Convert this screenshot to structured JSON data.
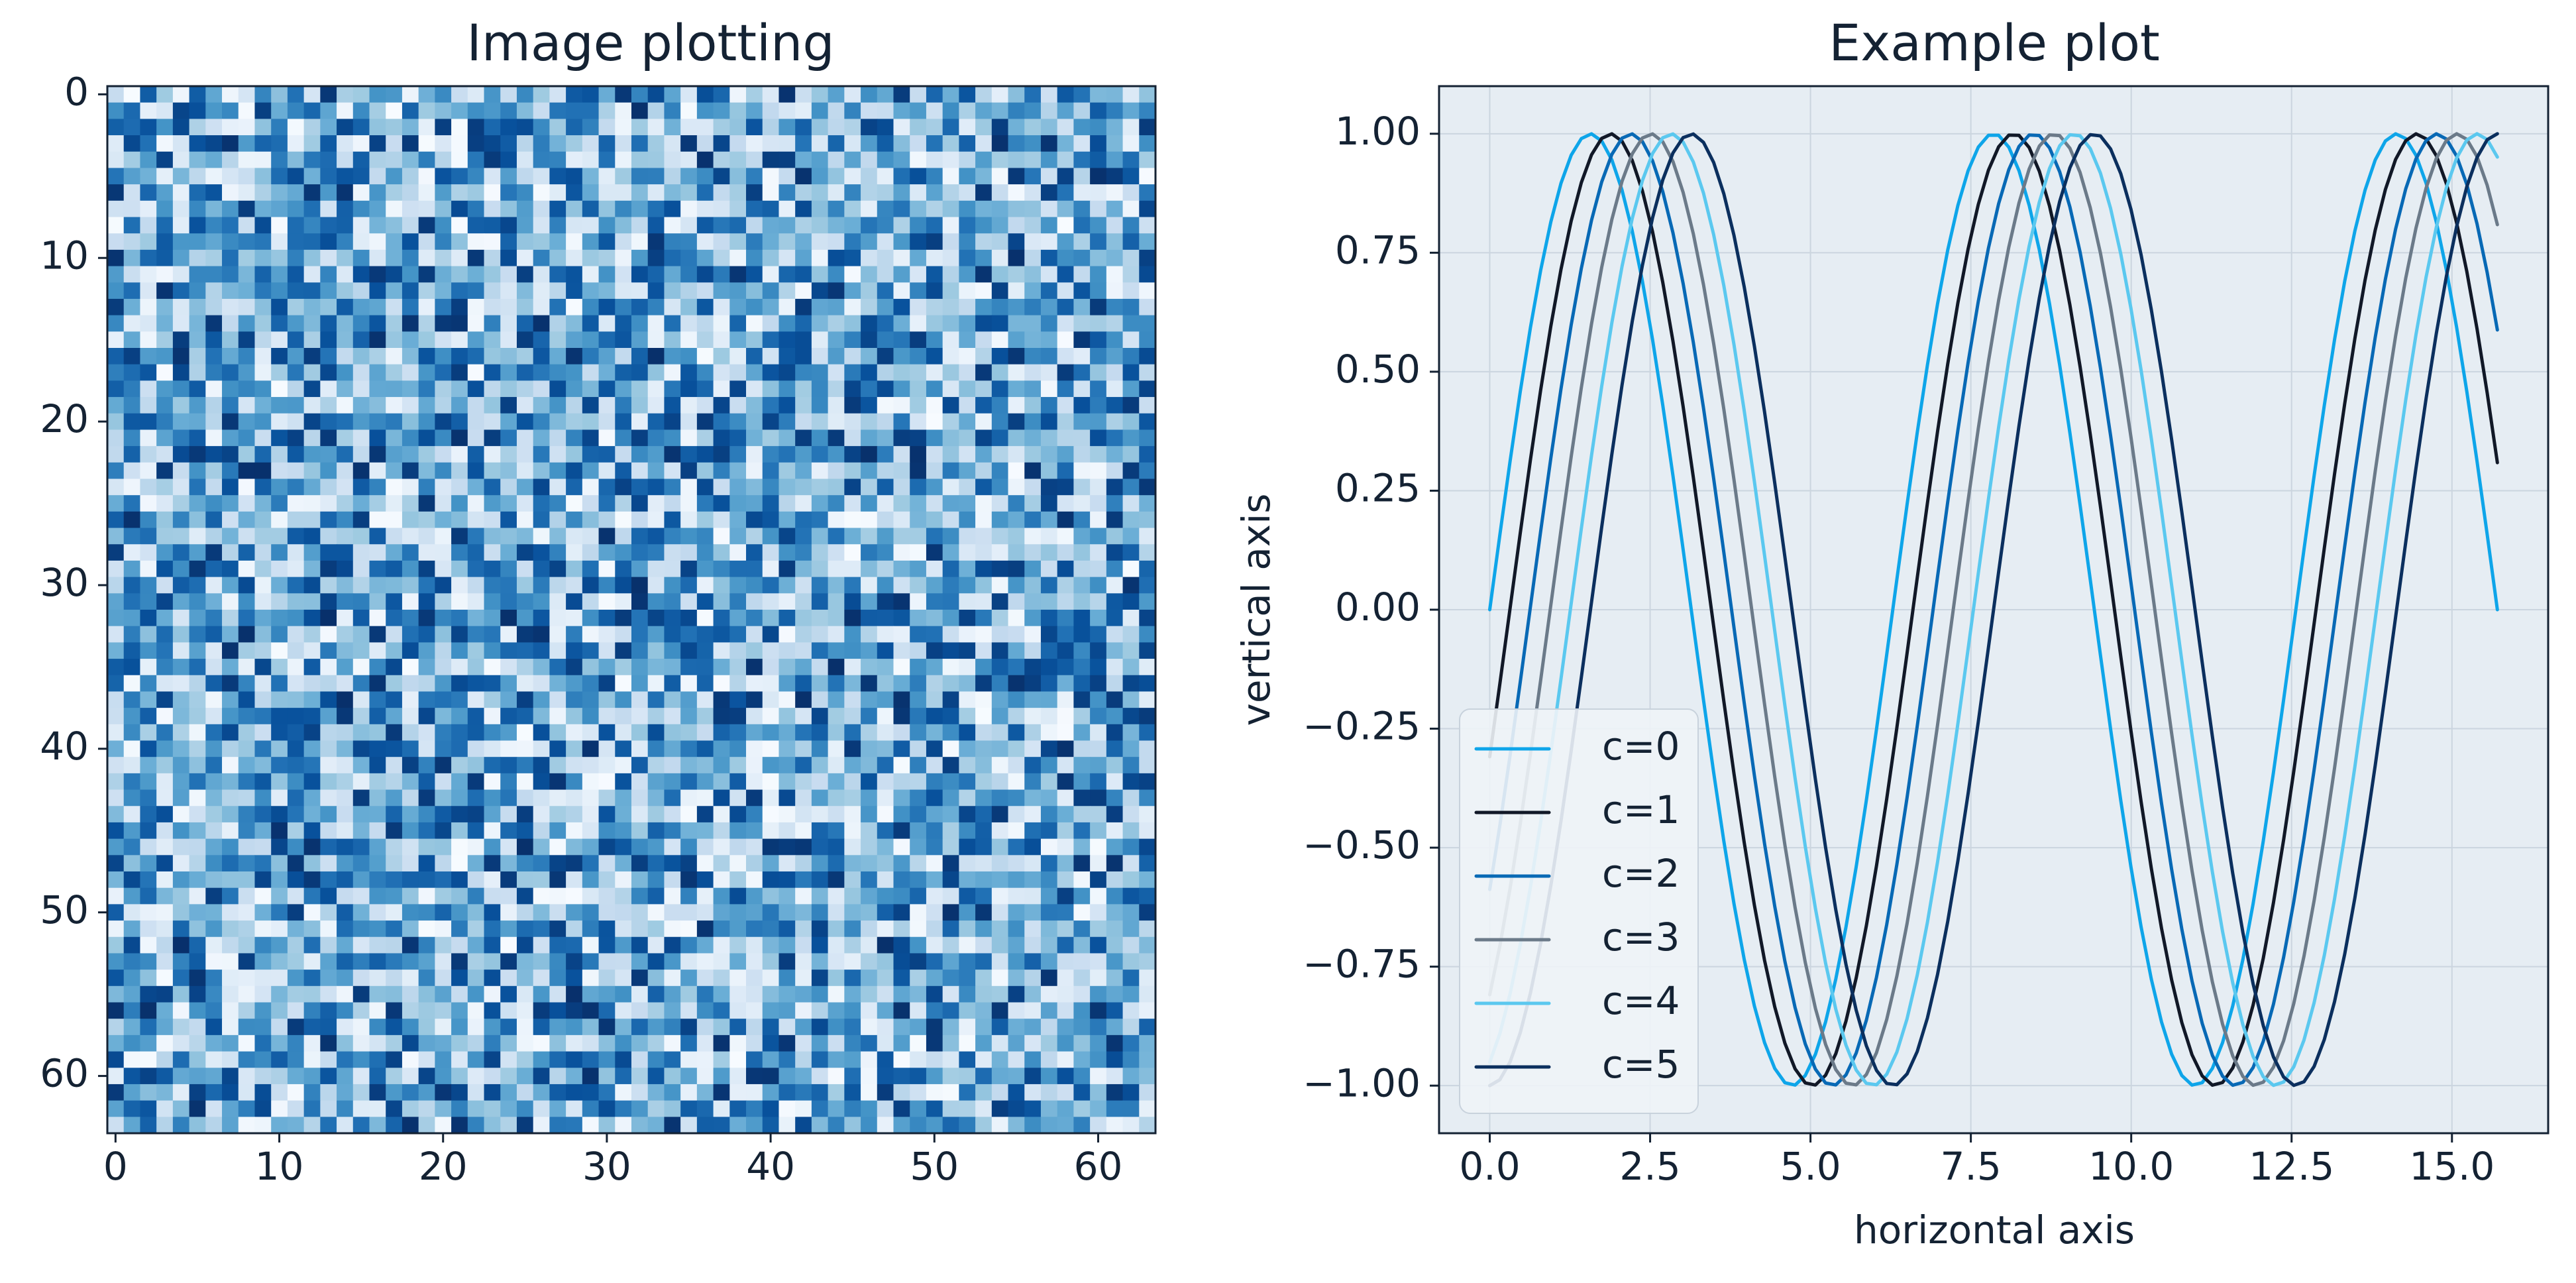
{
  "chart_data": [
    {
      "type": "heatmap",
      "title": "Image plotting",
      "xlabel": "",
      "ylabel": "",
      "shape": [
        64,
        64
      ],
      "xlim": [
        -0.5,
        63.5
      ],
      "ylim": [
        63.5,
        -0.5
      ],
      "y_axis_inverted": true,
      "xticks": [
        0,
        10,
        20,
        30,
        40,
        50,
        60
      ],
      "yticks": [
        0,
        10,
        20,
        30,
        40,
        50,
        60
      ],
      "colormap": "Blues",
      "value_range": [
        0,
        1
      ],
      "generator": "uniform random noise",
      "grid": false
    },
    {
      "type": "line",
      "title": "Example plot",
      "xlabel": "horizontal axis",
      "ylabel": "vertical axis",
      "xlim": [
        -0.79,
        16.5
      ],
      "ylim": [
        -1.1,
        1.1
      ],
      "xticks": [
        0.0,
        2.5,
        5.0,
        7.5,
        10.0,
        12.5,
        15.0
      ],
      "yticks": [
        -1.0,
        -0.75,
        -0.5,
        -0.25,
        0.0,
        0.25,
        0.5,
        0.75,
        1.0
      ],
      "xtick_labels": [
        "0.0",
        "2.5",
        "5.0",
        "7.5",
        "10.0",
        "12.5",
        "15.0"
      ],
      "ytick_labels": [
        "−1.00",
        "−0.75",
        "−0.50",
        "−0.25",
        "0.00",
        "0.25",
        "0.50",
        "0.75",
        "1.00"
      ],
      "function": "y = sin(x - c*pi/10)",
      "x_range": [
        0,
        15.708
      ],
      "points": 100,
      "series": [
        {
          "name": "c=0",
          "c": 0,
          "color": "#0ea5e9"
        },
        {
          "name": "c=1",
          "c": 1,
          "color": "#111827"
        },
        {
          "name": "c=2",
          "c": 2,
          "color": "#0869b5"
        },
        {
          "name": "c=3",
          "c": 3,
          "color": "#6b7a89"
        },
        {
          "name": "c=4",
          "c": 4,
          "color": "#5bc8ef"
        },
        {
          "name": "c=5",
          "c": 5,
          "color": "#0b2f5e"
        }
      ],
      "grid": true,
      "legend_placement": "lower-left",
      "background": "#e6edf3"
    }
  ]
}
